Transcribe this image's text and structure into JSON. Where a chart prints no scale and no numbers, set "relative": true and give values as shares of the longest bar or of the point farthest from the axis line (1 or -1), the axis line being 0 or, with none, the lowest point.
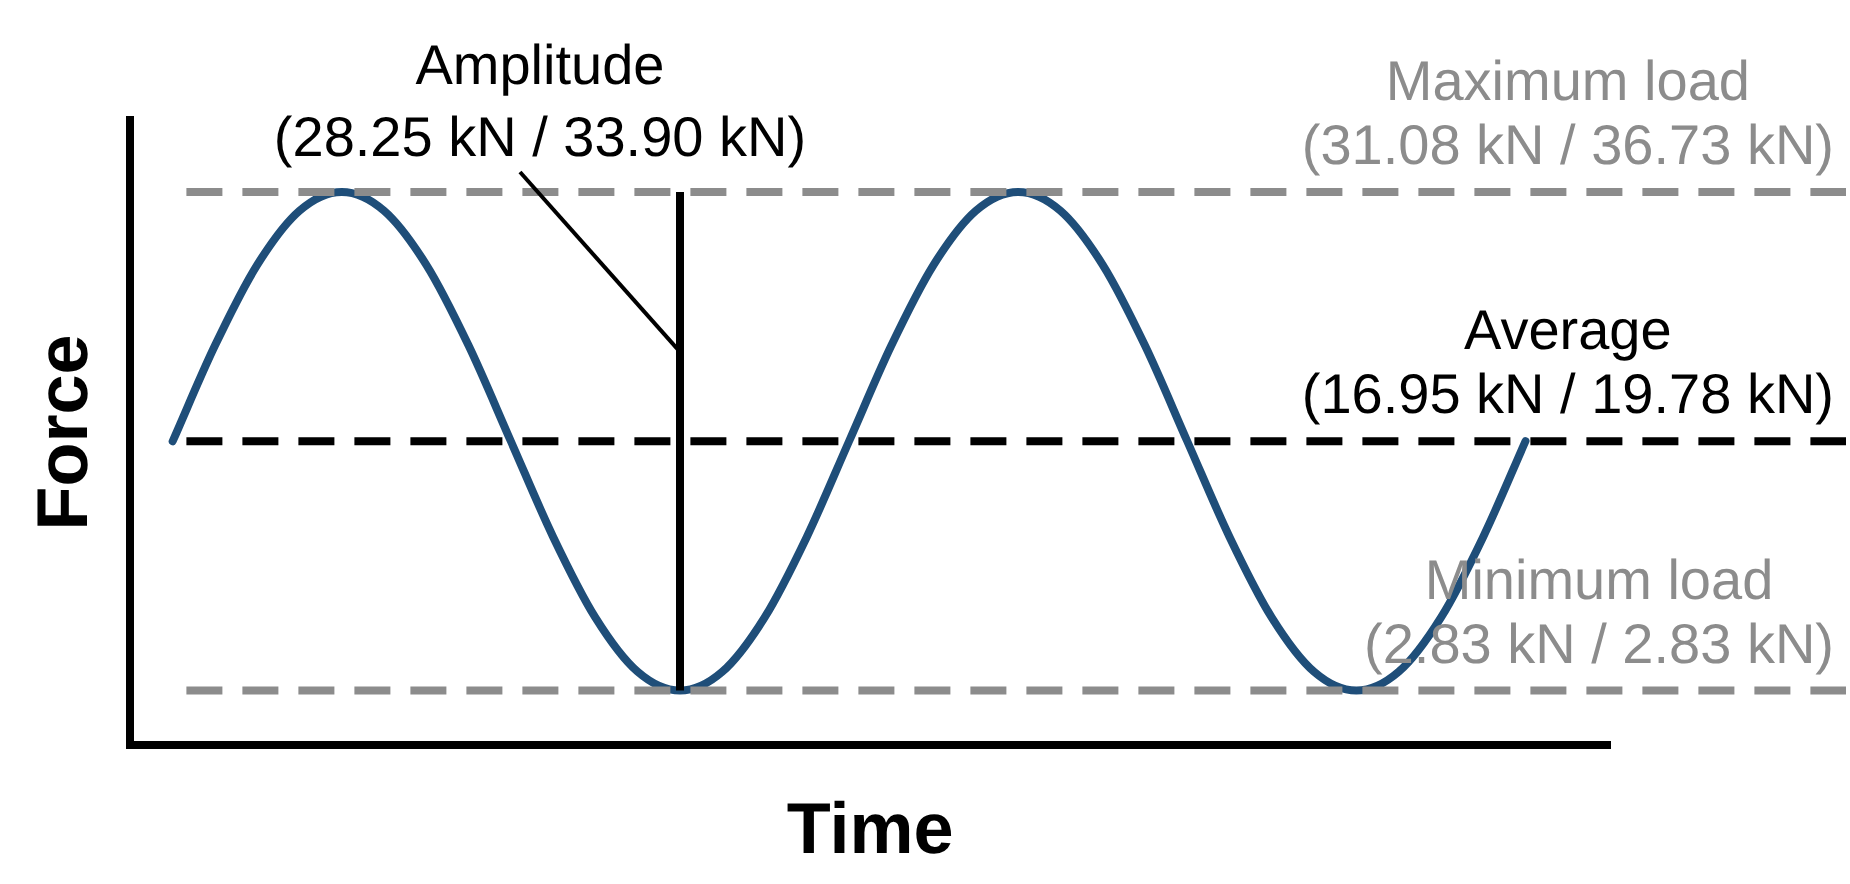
{
  "chart_data": {
    "type": "line",
    "relative": true,
    "xlabel": "Time",
    "ylabel": "Force",
    "grid": false,
    "legend": false,
    "marker": "none",
    "line_style": "solid",
    "categories": [
      null,
      null,
      null,
      null,
      null,
      null,
      null,
      null,
      null,
      null,
      null,
      null,
      null,
      null,
      null,
      null,
      null,
      null,
      null,
      null,
      null,
      null,
      null,
      null,
      null,
      null,
      null,
      null,
      null,
      null,
      null,
      null,
      null,
      null,
      null,
      null
    ],
    "series": [
      {
        "color": "#1f4e79",
        "values": [
          null,
          0.549,
          0.722,
          0.868,
          0.966,
          1.0,
          0.966,
          0.868,
          0.722,
          0.549,
          0.376,
          0.23,
          0.132,
          0.098,
          0.132,
          0.23,
          0.376,
          0.549,
          0.722,
          0.868,
          0.966,
          1.0,
          0.966,
          0.868,
          0.722,
          0.549,
          0.376,
          0.23,
          0.132,
          0.098,
          0.132,
          0.23,
          0.376,
          0.549,
          null,
          null
        ]
      }
    ],
    "ref_lines": [
      {
        "axis": "y",
        "value": 1.0,
        "label": "Maximum load (31.08 kN / 36.73 kN)",
        "color": "#8c8c8c",
        "line_style": "dashed"
      },
      {
        "axis": "y",
        "value": 0.549,
        "label": "Average (16.95 kN / 19.78 kN)",
        "color": "#000000",
        "line_style": "dashed"
      },
      {
        "axis": "y",
        "value": 0.098,
        "label": "Minimum load (2.83 kN / 2.83 kN)",
        "color": "#8c8c8c",
        "line_style": "dashed"
      }
    ],
    "annotations": [
      "Amplitude (28.25 kN / 33.90 kN)"
    ]
  }
}
